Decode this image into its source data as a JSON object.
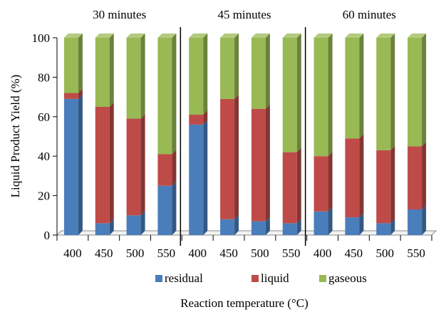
{
  "chart_data": {
    "type": "bar",
    "stacked": true,
    "three_d": true,
    "ylabel": "Liquid Product Yield (%)",
    "xlabel": "Reaction temperature (°C)",
    "ylim": [
      0,
      100
    ],
    "yticks": [
      0,
      20,
      40,
      60,
      80,
      100
    ],
    "grid": false,
    "legend_position": "bottom",
    "groups": [
      {
        "label": "30 minutes",
        "categories": [
          "400",
          "450",
          "500",
          "550"
        ]
      },
      {
        "label": "45 minutes",
        "categories": [
          "400",
          "450",
          "500",
          "550"
        ]
      },
      {
        "label": "60 minutes",
        "categories": [
          "400",
          "450",
          "500",
          "550"
        ]
      }
    ],
    "series": [
      {
        "name": "residual",
        "color": "#4a7ebb",
        "values": [
          69,
          6,
          10,
          25,
          56,
          8,
          7,
          6,
          12,
          9,
          6,
          13
        ]
      },
      {
        "name": "liquid",
        "color": "#be4b48",
        "values": [
          3,
          59,
          49,
          16,
          5,
          61,
          57,
          36,
          28,
          40,
          37,
          32
        ]
      },
      {
        "name": "gaseous",
        "color": "#98b954",
        "values": [
          28,
          35,
          41,
          59,
          39,
          31,
          36,
          58,
          60,
          51,
          57,
          55
        ]
      }
    ]
  }
}
